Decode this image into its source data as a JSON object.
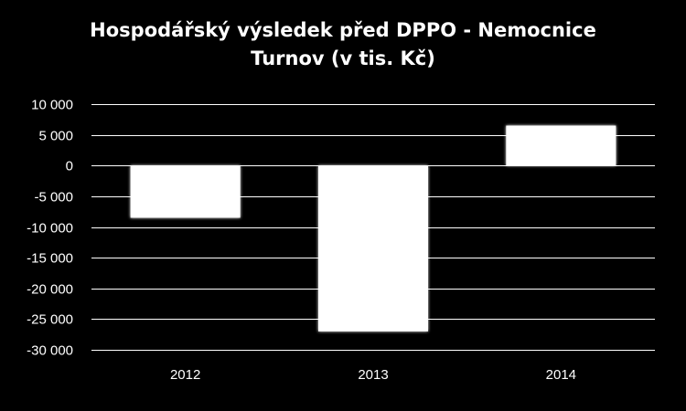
{
  "chart_data": {
    "type": "bar",
    "title_lines": [
      "Hospodářský výsledek před DPPO - Nemocnice",
      "Turnov (v tis. Kč)"
    ],
    "categories": [
      "2012",
      "2013",
      "2014"
    ],
    "values": [
      -8500,
      -27000,
      6500
    ],
    "y_ticks": [
      10000,
      5000,
      0,
      -5000,
      -10000,
      -15000,
      -20000,
      -25000,
      -30000
    ],
    "y_tick_labels": [
      "10 000",
      "5 000",
      "0",
      "-5 000",
      "-10 000",
      "-15 000",
      "-20 000",
      "-25 000",
      "-30 000"
    ],
    "ylim": [
      -30000,
      10000
    ],
    "xlabel": "",
    "ylabel": "",
    "grid": true,
    "legend": "none",
    "colors": {
      "background": "#000000",
      "bar": "#ffffff",
      "grid": "#ffffff",
      "text": "#ffffff"
    }
  }
}
